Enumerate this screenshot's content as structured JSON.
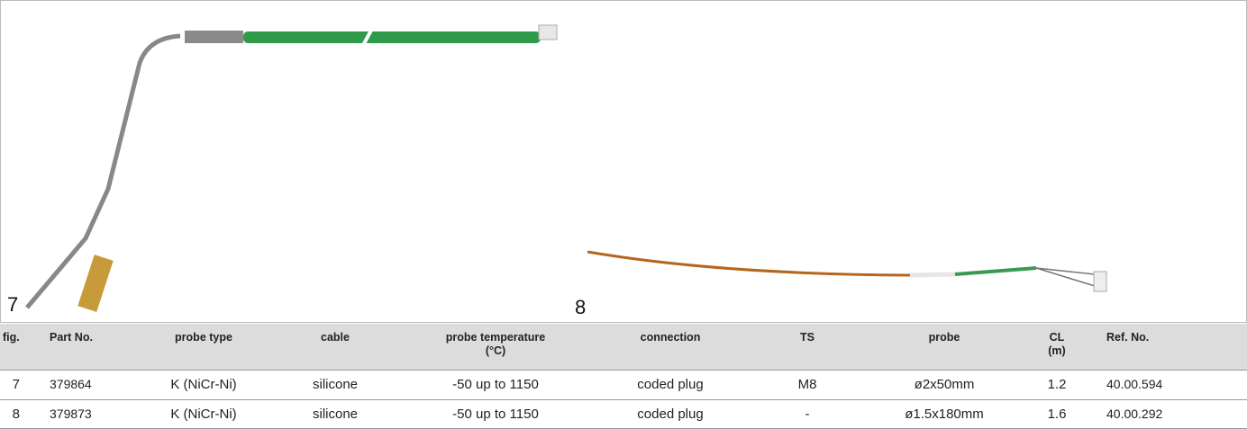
{
  "figures": [
    {
      "label": "7"
    },
    {
      "label": "8"
    }
  ],
  "table": {
    "header": [
      [
        "fig."
      ],
      [
        "Part No."
      ],
      [
        "probe type"
      ],
      [
        "cable"
      ],
      [
        "probe temperature",
        "(°C)"
      ],
      [
        "connection"
      ],
      [
        "TS"
      ],
      [
        "probe"
      ],
      [
        "CL",
        "(m)"
      ],
      [
        "Ref. No."
      ]
    ],
    "rows": [
      [
        "7",
        "379864",
        "K (NiCr-Ni)",
        "silicone",
        "-50 up to 1150",
        "coded plug",
        "M8",
        "ø2x50mm",
        "1.2",
        "40.00.594"
      ],
      [
        "8",
        "379873",
        "K (NiCr-Ni)",
        "silicone",
        "-50 up to 1150",
        "coded plug",
        "-",
        "ø1.5x180mm",
        "1.6",
        "40.00.292"
      ]
    ]
  }
}
